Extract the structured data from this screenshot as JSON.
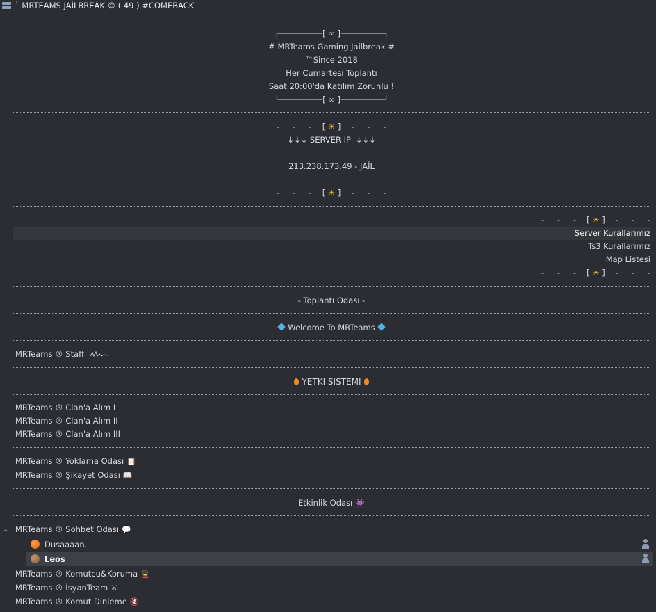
{
  "header": {
    "title": "` MRTEAMS JAİLBREAK ©  ( 49 ) #COMEBACK"
  },
  "banner1": {
    "top": "┌─────────[ ∞ ]─────────┐",
    "line1": "# MRTeams Gaming Jailbreak #",
    "line2": "™Since 2018",
    "line3": "Her Cumartesi Toplantı",
    "line4": "Saat 20:00'da Katılım Zorunlu !",
    "bottom": "└─────────[ ∞ ]─────────┘"
  },
  "banner2": {
    "deco_left": "- — - — - —[",
    "deco_right": "]— - — - — -",
    "server_ip_label": "↓↓↓ SERVER IP' ↓↓↓",
    "server_ip": "213.238.173.49 - JAİL"
  },
  "rules": {
    "deco_left": "- — - — - —[",
    "deco_right": "]— - — - — -",
    "items": [
      "Server Kurallarımız",
      "Ts3 Kurallarımız",
      "Map Listesi"
    ]
  },
  "channels": {
    "meeting": "- Toplantı Odası  -",
    "welcome": "Welcome To MRTeams",
    "staff": "MRTeams ® Staff",
    "yetki": "YETKI SISTEMI",
    "clan1": "MRTeams ® Clan'a Alım I",
    "clan2": "MRTeams ® Clan'a Alım II",
    "clan3": "MRTeams ® Clan'a Alım III",
    "yoklama": "MRTeams ® Yoklama Odası",
    "sikayet": "MRTeams ® Şikayet Odası",
    "etkinlik": "Etkinlik Odası",
    "sohbet": "MRTeams ® Sohbet Odası",
    "komutcu": "MRTeams ® Komutcu&Koruma",
    "isyan": "MRTeams ® İsyanTeam",
    "komut_dinleme": "MRTeams ® Komut Dinleme"
  },
  "users": [
    "Dusaaaan.",
    "Leos"
  ],
  "icons": {
    "sun": "☀",
    "gem": "gem-icon",
    "flame": "flame-icon",
    "clipboard": "📋",
    "book": "📖",
    "invader": "👾",
    "speech": "💬",
    "guard": "💂",
    "swords": "⚔",
    "mute": "🔇"
  },
  "colors": {
    "background": "#2b2d33",
    "text": "#d6d8dc",
    "highlight": "#3e4047",
    "talk_orange": "#d85a06"
  }
}
